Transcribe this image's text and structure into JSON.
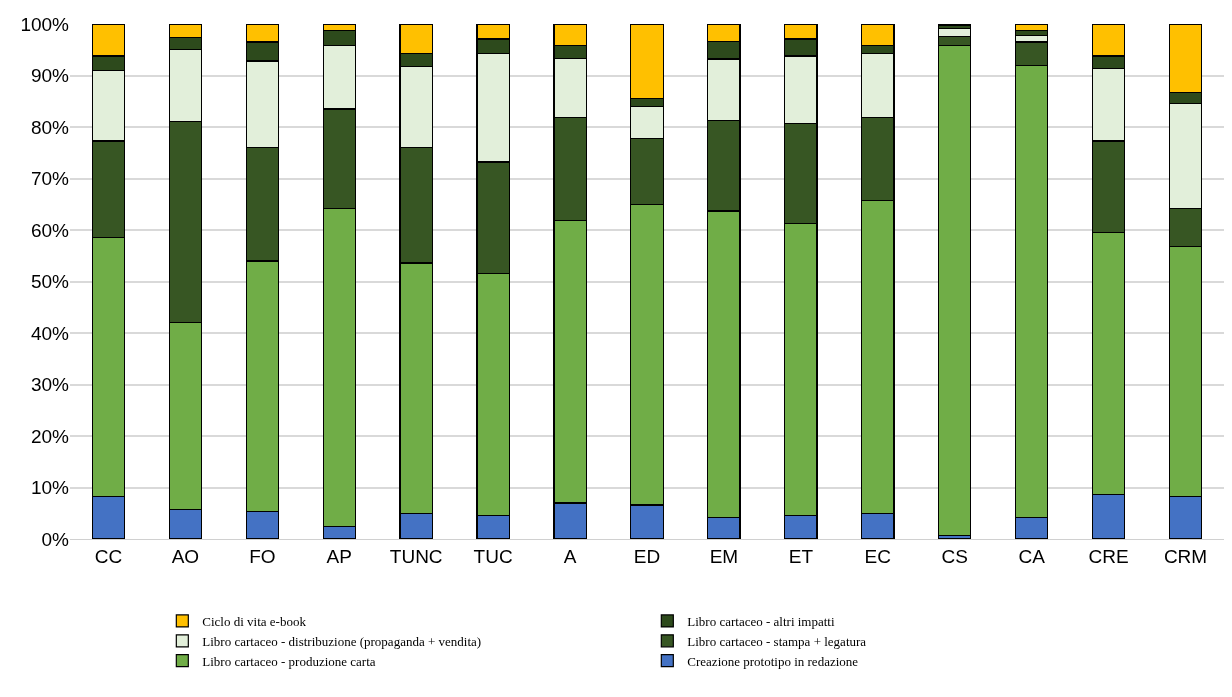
{
  "chart_data": {
    "type": "bar",
    "stacked": true,
    "categories": [
      "CC",
      "AO",
      "FO",
      "AP",
      "TUNC",
      "TUC",
      "A",
      "ED",
      "EM",
      "ET",
      "EC",
      "CS",
      "CA",
      "CRE",
      "CRM"
    ],
    "series": [
      {
        "name": "Creazione prototipo in redazione",
        "color": "#4472c4",
        "values": [
          8.2,
          5.8,
          5.3,
          2.5,
          5.0,
          4.5,
          7.0,
          6.6,
          4.2,
          4.6,
          5.0,
          0.7,
          4.1,
          8.7,
          8.2
        ]
      },
      {
        "name": "Libro cartaceo - produzione carta",
        "color": "#70ad47",
        "values": [
          50.3,
          36.2,
          48.7,
          61.7,
          48.6,
          47.0,
          54.8,
          58.4,
          59.5,
          56.7,
          60.8,
          95.2,
          87.9,
          50.8,
          48.6
        ]
      },
      {
        "name": "Libro cartaceo - stampa + legatura",
        "color": "#375623",
        "values": [
          18.8,
          39.0,
          22.0,
          19.3,
          22.4,
          21.7,
          20.0,
          12.8,
          17.6,
          19.4,
          16.0,
          1.7,
          4.5,
          17.8,
          7.4
        ]
      },
      {
        "name": "Libro cartaceo - distribuzione (propaganda + vendita)",
        "color": "#e2efda",
        "values": [
          13.7,
          14.0,
          16.8,
          12.3,
          15.7,
          21.0,
          11.5,
          6.2,
          11.9,
          13.1,
          12.4,
          1.6,
          1.3,
          14.0,
          20.4
        ]
      },
      {
        "name": "Libro cartaceo - altri impatti",
        "color": "#2d4a1c",
        "values": [
          2.8,
          2.4,
          3.7,
          2.9,
          2.5,
          2.9,
          2.5,
          1.6,
          3.4,
          3.3,
          1.7,
          0.6,
          1.0,
          2.5,
          2.1
        ]
      },
      {
        "name": "Ciclo di vita e-book",
        "color": "#ffc000",
        "values": [
          6.2,
          2.6,
          3.5,
          1.3,
          5.8,
          2.9,
          4.2,
          14.4,
          3.4,
          2.9,
          4.1,
          0.2,
          1.2,
          6.2,
          13.3
        ]
      }
    ],
    "ylim": [
      0,
      100
    ],
    "yticks": [
      {
        "value": 0,
        "label": "0%"
      },
      {
        "value": 10,
        "label": "10%"
      },
      {
        "value": 20,
        "label": "20%"
      },
      {
        "value": 30,
        "label": "30%"
      },
      {
        "value": 40,
        "label": "40%"
      },
      {
        "value": 50,
        "label": "50%"
      },
      {
        "value": 60,
        "label": "60%"
      },
      {
        "value": 70,
        "label": "70%"
      },
      {
        "value": 80,
        "label": "80%"
      },
      {
        "value": 90,
        "label": "90%"
      },
      {
        "value": 100,
        "label": "100%"
      }
    ],
    "grid": "y",
    "legend": "bottom"
  }
}
